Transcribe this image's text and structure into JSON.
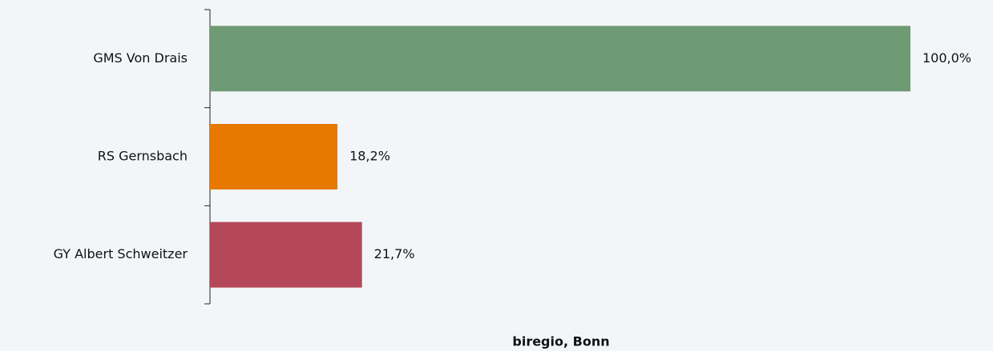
{
  "chart_data": {
    "type": "bar",
    "orientation": "horizontal",
    "categories": [
      "GMS Von Drais",
      "RS Gernsbach",
      "GY Albert Schweitzer"
    ],
    "values": [
      100,
      18.2,
      21.7
    ],
    "value_labels": [
      "100,0%",
      "18,2%",
      "21,7%"
    ],
    "colors": [
      "#6e9b74",
      "#e87900",
      "#b5475a"
    ],
    "source": "biregio, Bonn"
  }
}
